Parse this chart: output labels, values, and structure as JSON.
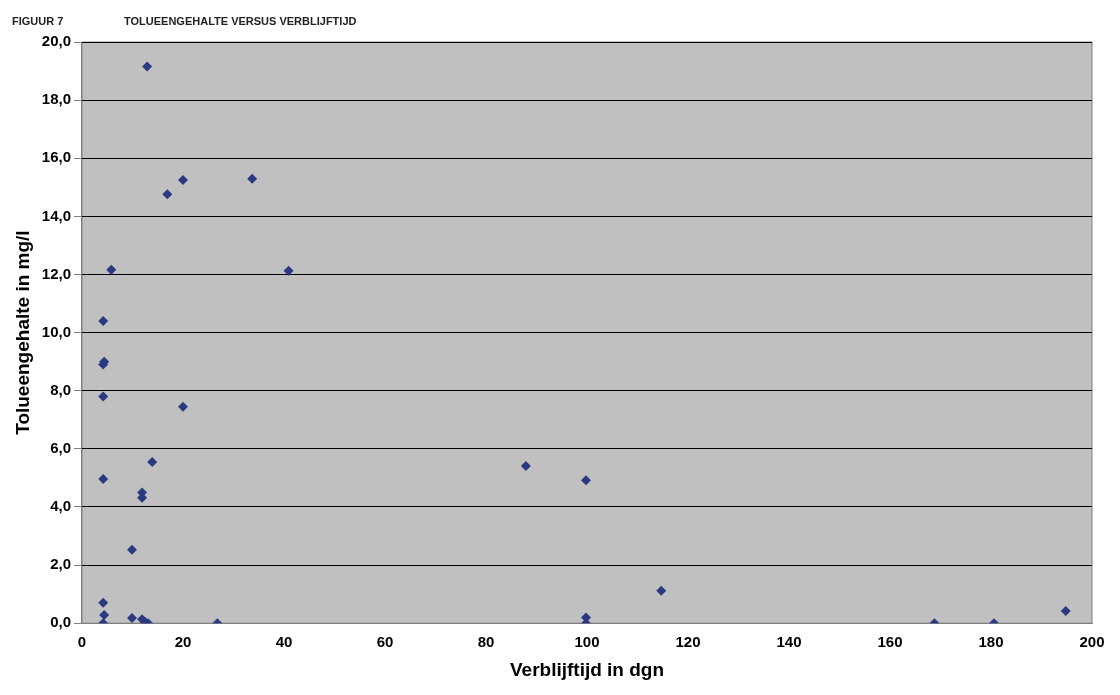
{
  "chart_data": {
    "type": "scatter",
    "title": "TOLUEENGEHALTE VERSUS VERBLIJFTIJD",
    "annotations": [
      "FIGUUR 7"
    ],
    "xlabel": "Verblijftijd in dgn",
    "ylabel": "Tolueengehalte in mg/l",
    "series": [
      {
        "color": "#2b3a80",
        "x": [
          12.9,
          20,
          16.9,
          33.7,
          5.8,
          40.9,
          4.2,
          4.4,
          4.2,
          4.2,
          20,
          13.9,
          4.2,
          11.9,
          11.9,
          9.9,
          4.2,
          4.4,
          4.2,
          9.9,
          11.9,
          12.5,
          13.1,
          26.8,
          87.9,
          99.8,
          99.8,
          99.8,
          114.7,
          168.8,
          180.6,
          194.8
        ],
        "values": [
          19.16,
          15.25,
          14.76,
          15.29,
          12.16,
          12.13,
          10.4,
          9.0,
          8.9,
          7.8,
          7.45,
          5.55,
          4.96,
          4.5,
          4.32,
          2.53,
          0.7,
          0.28,
          0,
          0.18,
          0.14,
          0.04,
          0,
          0,
          5.41,
          4.92,
          0.2,
          0,
          1.12,
          0,
          0,
          0.42
        ]
      }
    ],
    "xlim": [
      0,
      200
    ],
    "xticks": [
      0,
      20,
      40,
      60,
      80,
      100,
      120,
      140,
      160,
      180,
      200
    ],
    "ylim": [
      0,
      20
    ],
    "yticks": [
      {
        "value": 0,
        "label": "0,0"
      },
      {
        "value": 2,
        "label": "2,0"
      },
      {
        "value": 4,
        "label": "4,0"
      },
      {
        "value": 6,
        "label": "6,0"
      },
      {
        "value": 8,
        "label": "8,0"
      },
      {
        "value": 10,
        "label": "10,0"
      },
      {
        "value": 12,
        "label": "12,0"
      },
      {
        "value": 14,
        "label": "14,0"
      },
      {
        "value": 16,
        "label": "16,0"
      },
      {
        "value": 18,
        "label": "18,0"
      },
      {
        "value": 20,
        "label": "20,0"
      }
    ],
    "grid": "y",
    "marker": "diamond",
    "legend": false
  }
}
